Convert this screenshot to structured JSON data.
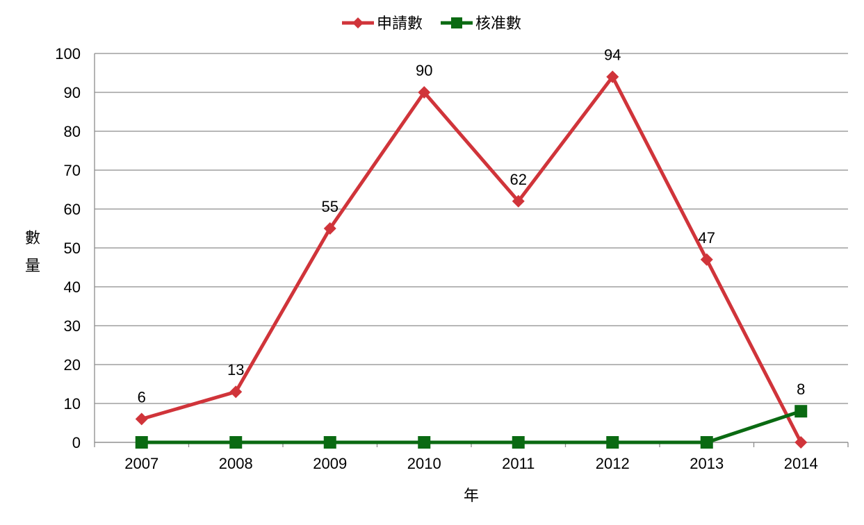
{
  "chart_data": {
    "type": "line",
    "title": "",
    "xlabel": "年",
    "ylabel": "數量",
    "categories": [
      "2007",
      "2008",
      "2009",
      "2010",
      "2011",
      "2012",
      "2013",
      "2014"
    ],
    "ylim": [
      0,
      100
    ],
    "yticks": [
      0,
      10,
      20,
      30,
      40,
      50,
      60,
      70,
      80,
      90,
      100
    ],
    "grid": true,
    "legend_position": "top",
    "series": [
      {
        "name": "申請數",
        "values": [
          6,
          13,
          55,
          90,
          62,
          94,
          47,
          0
        ],
        "color": "#D0343A",
        "marker": "diamond",
        "data_labels": [
          "6",
          "13",
          "55",
          "90",
          "62",
          "94",
          "47",
          ""
        ]
      },
      {
        "name": "核准數",
        "values": [
          0,
          0,
          0,
          0,
          0,
          0,
          0,
          8
        ],
        "color": "#0A6A12",
        "marker": "square",
        "data_labels": [
          "",
          "",
          "",
          "",
          "",
          "",
          "",
          "8"
        ]
      }
    ]
  }
}
